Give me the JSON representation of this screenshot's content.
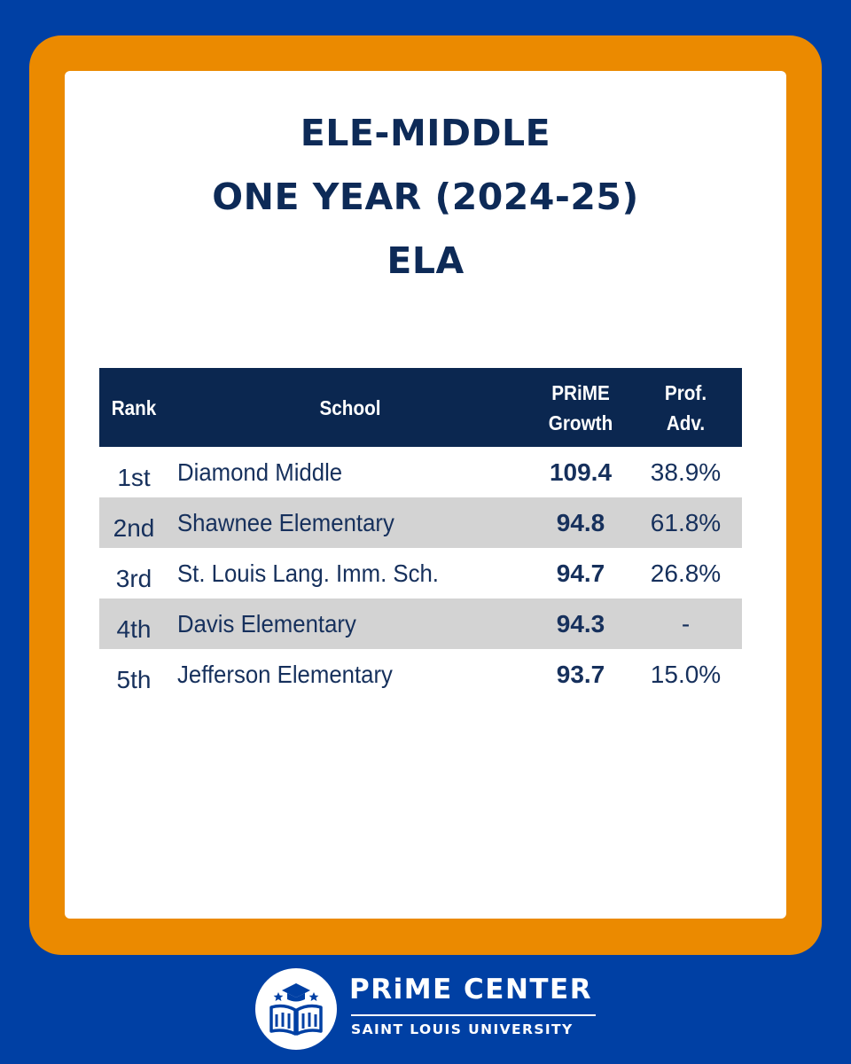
{
  "title": {
    "line1": "ELE-MIDDLE",
    "line2": "ONE YEAR (2024-25)",
    "line3": "ELA"
  },
  "table": {
    "headers": {
      "rank": "Rank",
      "school": "School",
      "growth_line1": "PRiME",
      "growth_line2": "Growth",
      "prof_line1": "Prof.",
      "prof_line2": "Adv."
    },
    "rows": [
      {
        "rank": "1st",
        "school": "Diamond Middle",
        "growth": "109.4",
        "prof": "38.9%"
      },
      {
        "rank": "2nd",
        "school": "Shawnee Elementary",
        "growth": "94.8",
        "prof": "61.8%"
      },
      {
        "rank": "3rd",
        "school": "St. Louis Lang. Imm. Sch.",
        "growth": "94.7",
        "prof": "26.8%"
      },
      {
        "rank": "4th",
        "school": "Davis Elementary",
        "growth": "94.3",
        "prof": "-"
      },
      {
        "rank": "5th",
        "school": "Jefferson Elementary",
        "growth": "93.7",
        "prof": "15.0%"
      }
    ]
  },
  "logo": {
    "name": "PRiME CENTER",
    "subtitle": "SAINT LOUIS UNIVERSITY",
    "icon": "open-book-graduation-cap-icon"
  },
  "colors": {
    "background": "#0040A4",
    "frame": "#EB8A00",
    "header": "#0B2750",
    "text": "#16305C",
    "row_shade": "#D3D3D3"
  }
}
